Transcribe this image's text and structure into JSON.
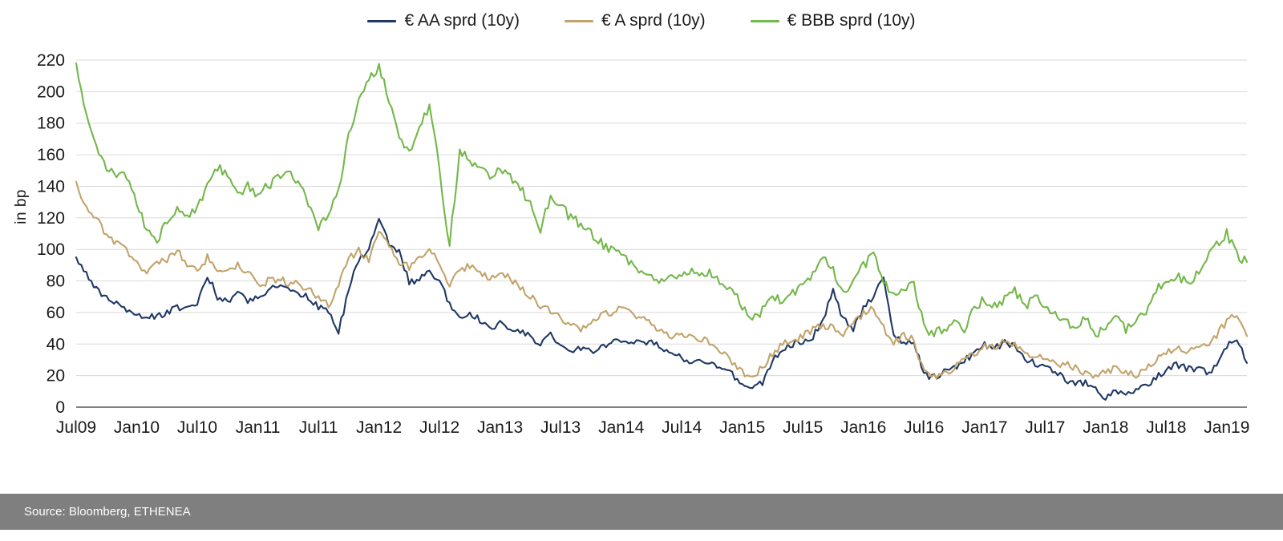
{
  "footer": {
    "source": "Source: Bloomberg, ETHENEA"
  },
  "chart_data": {
    "type": "line",
    "title": "",
    "xlabel": "",
    "ylabel": "in bp",
    "ylim": [
      0,
      220
    ],
    "grid": "horizontal",
    "legend_position": "top-center",
    "y_ticks": [
      0,
      20,
      40,
      60,
      80,
      100,
      120,
      140,
      160,
      180,
      200,
      220
    ],
    "x_ticks": [
      "Jul09",
      "Jan10",
      "Jul10",
      "Jan11",
      "Jul11",
      "Jan12",
      "Jul12",
      "Jan13",
      "Jul13",
      "Jan14",
      "Jul14",
      "Jan15",
      "Jul15",
      "Jan16",
      "Jul16",
      "Jan17",
      "Jul17",
      "Jan18",
      "Jul18",
      "Jan19"
    ],
    "x_tick_month_indices": [
      0,
      6,
      12,
      18,
      24,
      30,
      36,
      42,
      48,
      54,
      60,
      66,
      72,
      78,
      84,
      90,
      96,
      102,
      108,
      114
    ],
    "x_unit": "monthly samples from Jul 2009 to Mar 2019",
    "series": [
      {
        "name": "€ AA sprd (10y)",
        "color": "#1f3864",
        "values": [
          95,
          84,
          75,
          70,
          65,
          62,
          60,
          57,
          58,
          60,
          63,
          62,
          65,
          84,
          70,
          67,
          72,
          68,
          70,
          74,
          77,
          75,
          72,
          70,
          64,
          60,
          48,
          74,
          94,
          100,
          120,
          104,
          99,
          79,
          81,
          86,
          80,
          65,
          56,
          60,
          55,
          50,
          53,
          50,
          48,
          45,
          40,
          46,
          38,
          37,
          36,
          35,
          38,
          42,
          43,
          42,
          40,
          42,
          38,
          34,
          31,
          29,
          28,
          27,
          24,
          21,
          14,
          12,
          16,
          29,
          37,
          40,
          42,
          45,
          55,
          74,
          56,
          50,
          62,
          70,
          82,
          46,
          40,
          42,
          20,
          19,
          22,
          25,
          30,
          34,
          40,
          37,
          41,
          39,
          30,
          28,
          25,
          22,
          18,
          15,
          15,
          12,
          5,
          10,
          8,
          10,
          14,
          19,
          24,
          27,
          25,
          24,
          22,
          25,
          38,
          44,
          28
        ]
      },
      {
        "name": "€ A sprd (10y)",
        "color": "#c2a36a",
        "values": [
          143,
          126,
          119,
          110,
          104,
          100,
          91,
          87,
          90,
          94,
          100,
          90,
          86,
          95,
          86,
          85,
          90,
          86,
          76,
          80,
          81,
          79,
          78,
          75,
          70,
          64,
          79,
          94,
          100,
          92,
          113,
          104,
          92,
          89,
          95,
          100,
          90,
          78,
          86,
          90,
          86,
          81,
          86,
          81,
          76,
          70,
          64,
          61,
          56,
          52,
          50,
          54,
          58,
          60,
          64,
          60,
          56,
          52,
          49,
          45,
          45,
          46,
          43,
          40,
          34,
          29,
          22,
          20,
          25,
          34,
          40,
          42,
          45,
          49,
          52,
          50,
          47,
          54,
          59,
          63,
          50,
          41,
          45,
          43,
          22,
          20,
          22,
          25,
          30,
          34,
          40,
          38,
          42,
          40,
          34,
          32,
          30,
          28,
          27,
          25,
          22,
          20,
          22,
          25,
          22,
          20,
          24,
          30,
          34,
          37,
          35,
          37,
          40,
          45,
          55,
          60,
          45
        ]
      },
      {
        "name": "€ BBB sprd (10y)",
        "color": "#74b74a",
        "values": [
          218,
          185,
          165,
          152,
          145,
          147,
          128,
          112,
          105,
          118,
          125,
          120,
          126,
          140,
          153,
          148,
          133,
          140,
          134,
          140,
          146,
          150,
          142,
          130,
          114,
          124,
          136,
          172,
          196,
          208,
          215,
          196,
          170,
          160,
          175,
          192,
          150,
          102,
          163,
          155,
          150,
          146,
          150,
          146,
          140,
          128,
          113,
          134,
          128,
          120,
          116,
          110,
          104,
          99,
          96,
          90,
          87,
          84,
          79,
          82,
          85,
          88,
          84,
          85,
          79,
          76,
          64,
          57,
          61,
          70,
          66,
          72,
          79,
          84,
          94,
          86,
          74,
          80,
          89,
          100,
          80,
          70,
          76,
          80,
          50,
          46,
          50,
          54,
          49,
          63,
          68,
          64,
          69,
          74,
          64,
          69,
          64,
          60,
          54,
          50,
          56,
          45,
          50,
          56,
          50,
          54,
          60,
          74,
          80,
          84,
          79,
          84,
          94,
          104,
          110,
          96,
          92
        ]
      }
    ]
  }
}
